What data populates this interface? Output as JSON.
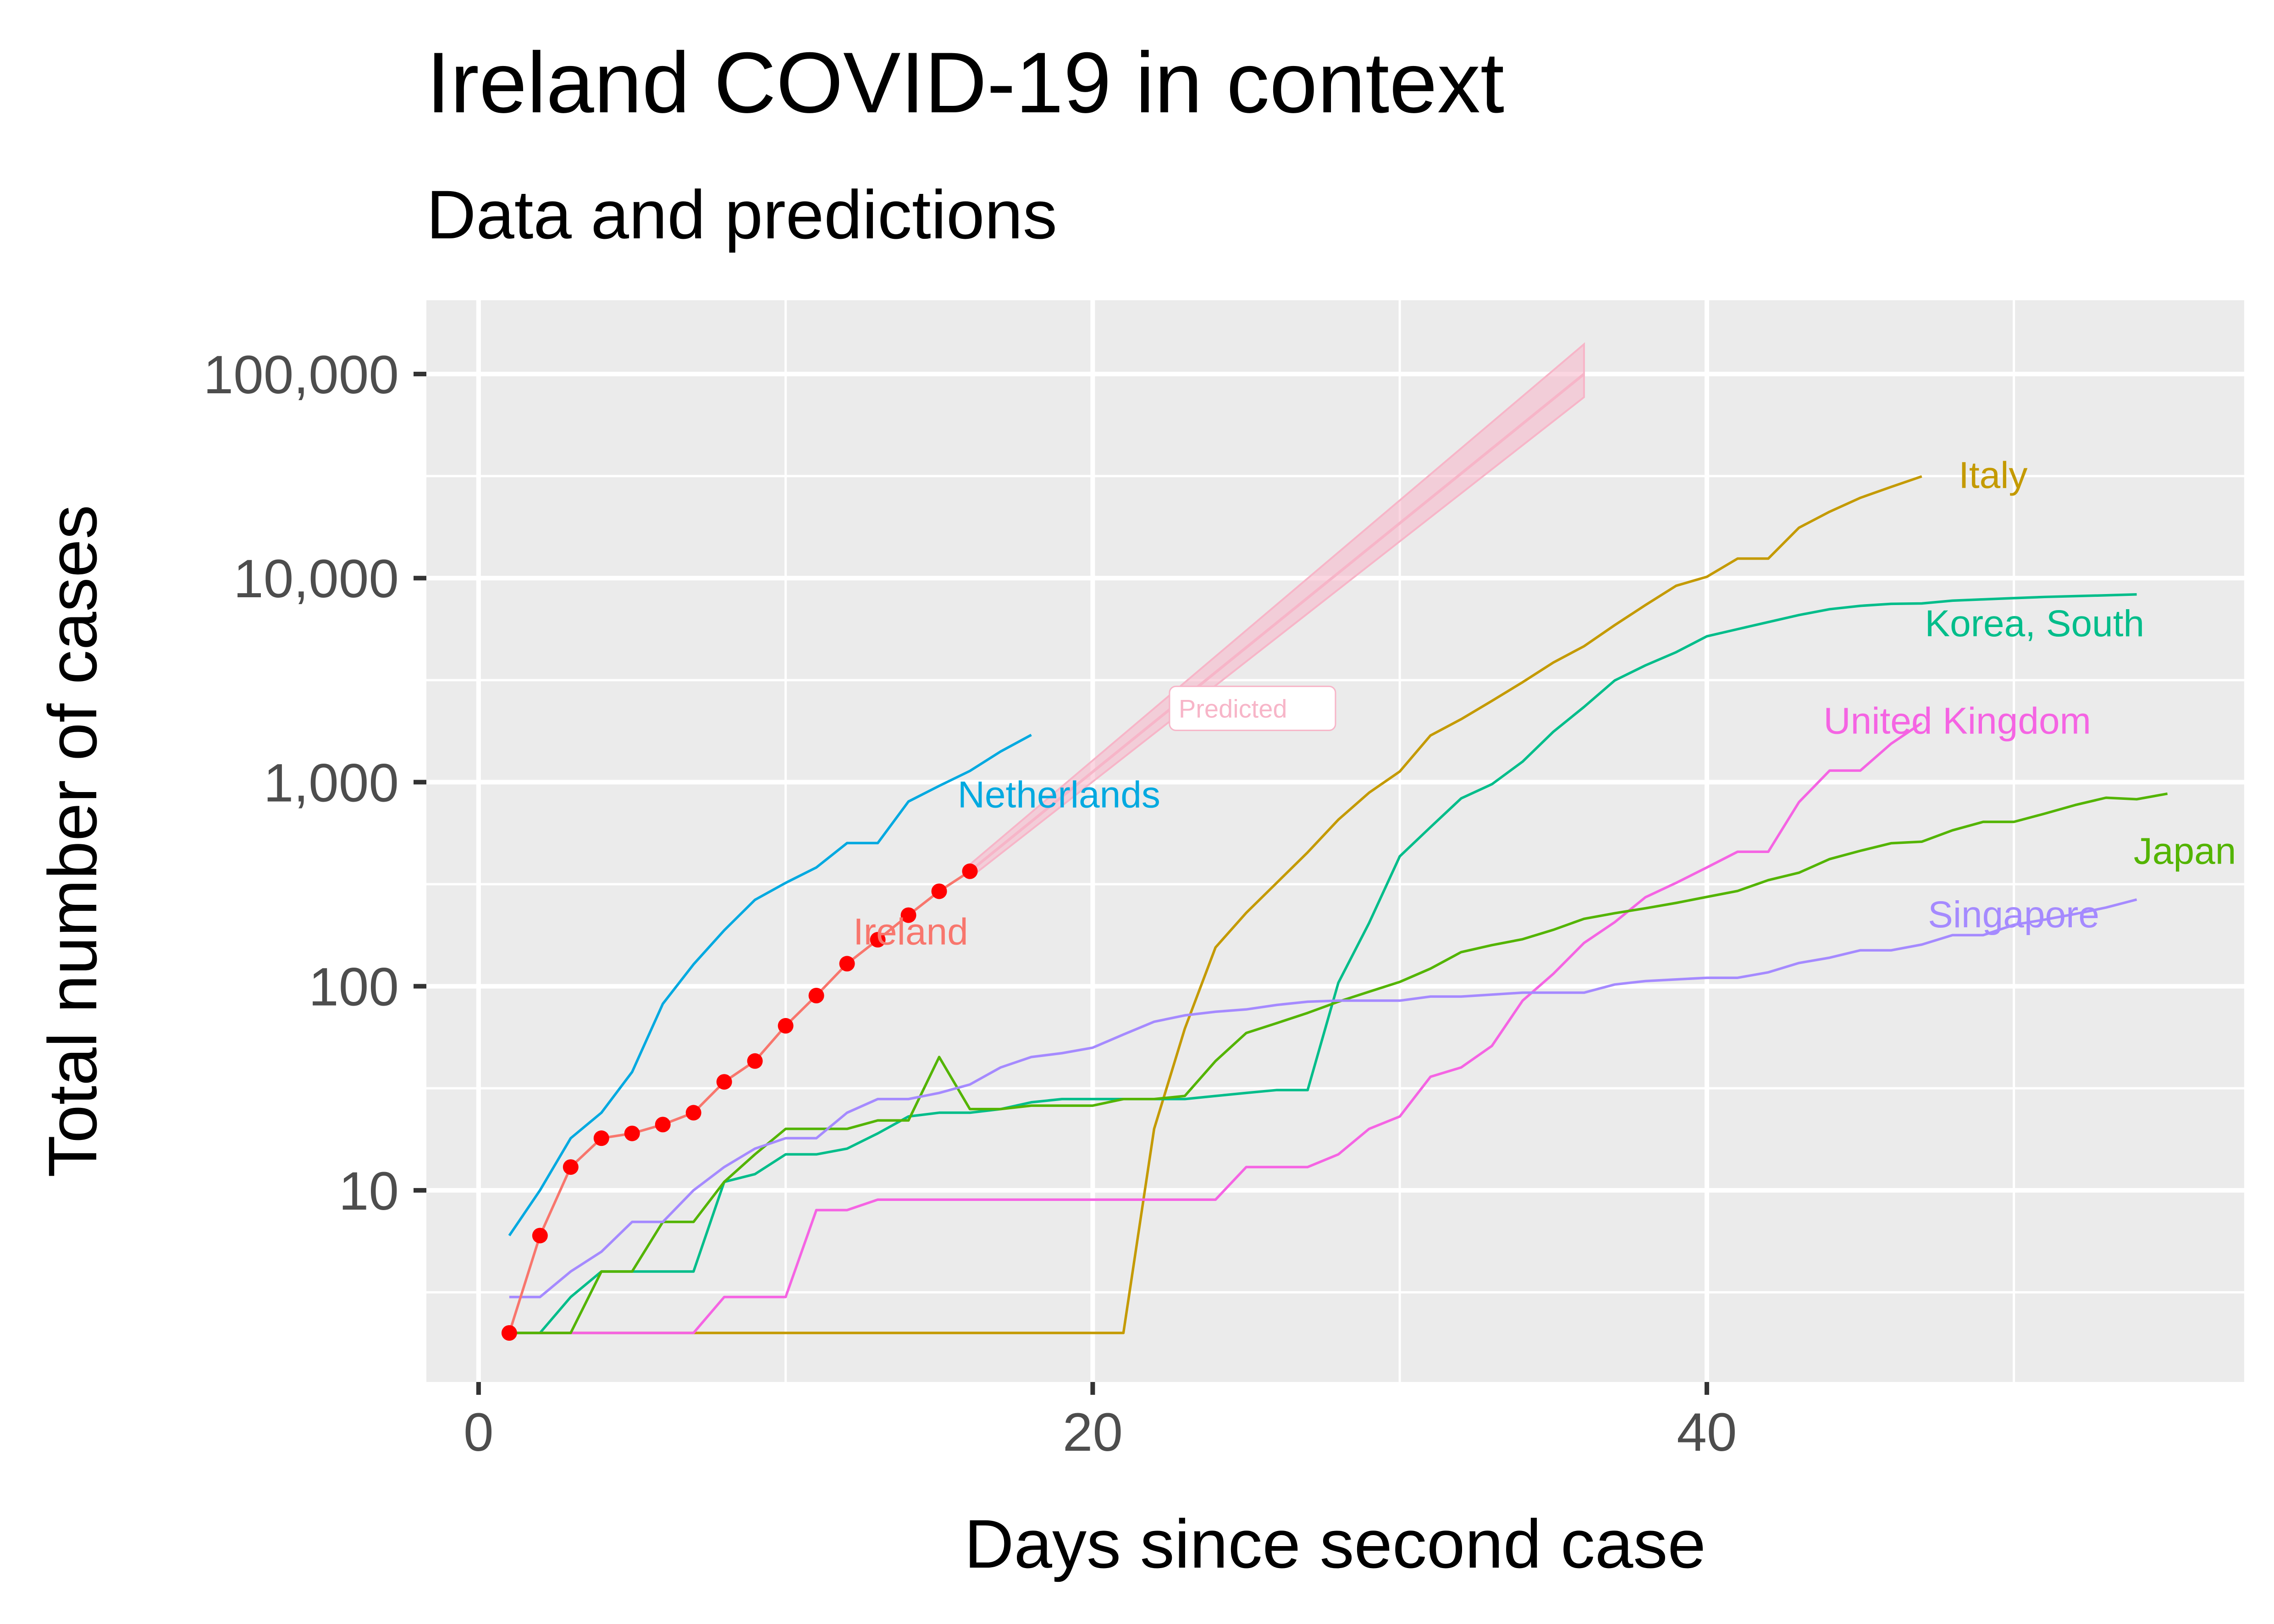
{
  "chart_data": {
    "type": "line",
    "title": "Ireland COVID-19 in context",
    "subtitle": "Data and predictions",
    "xlabel": "Days since second case",
    "ylabel": "Total number of cases",
    "x_scale": "linear",
    "y_scale": "log10",
    "xlim": [
      -1.7,
      57.5
    ],
    "ylim": [
      1.15,
      230000
    ],
    "x_ticks": [
      0,
      20,
      40
    ],
    "x_tick_labels": [
      "0",
      "20",
      "40"
    ],
    "y_ticks": [
      10,
      100,
      1000,
      10000,
      100000
    ],
    "y_tick_labels": [
      "10",
      "100",
      "1,000",
      "10,000",
      "100,000"
    ],
    "grid": true,
    "legend": "none (direct labels)",
    "series": [
      {
        "name": "Netherlands",
        "color": "#00a9e0",
        "label": {
          "text": "Netherlands",
          "x": 15.6,
          "y": 870
        },
        "x": [
          1,
          2,
          3,
          4,
          5,
          6,
          7,
          8,
          9,
          10,
          11,
          12,
          13,
          14,
          15,
          16,
          17,
          18
        ],
        "y": [
          6,
          10,
          18,
          24,
          38,
          82,
          128,
          188,
          265,
          321,
          382,
          503,
          503,
          804,
          959,
          1135,
          1413,
          1705
        ]
      },
      {
        "name": "Italy",
        "color": "#c49a00",
        "label": {
          "text": "Italy",
          "x": 48.2,
          "y": 32000
        },
        "x": [
          1,
          2,
          3,
          4,
          5,
          6,
          7,
          8,
          9,
          10,
          11,
          12,
          13,
          14,
          15,
          16,
          17,
          18,
          19,
          20,
          21,
          22,
          23,
          24,
          25,
          26,
          27,
          28,
          29,
          30,
          31,
          32,
          33,
          34,
          35,
          36,
          37,
          38,
          39,
          40,
          41,
          42,
          43,
          44,
          45,
          46,
          47
        ],
        "y": [
          2,
          2,
          2,
          2,
          2,
          2,
          2,
          2,
          2,
          2,
          2,
          2,
          2,
          2,
          2,
          2,
          2,
          2,
          2,
          2,
          2,
          20,
          62,
          155,
          229,
          322,
          453,
          655,
          888,
          1128,
          1694,
          2036,
          2502,
          3089,
          3858,
          4636,
          5883,
          7375,
          9172,
          10149,
          12462,
          12462,
          17660,
          21157,
          24747,
          27980,
          31506
        ]
      },
      {
        "name": "Korea, South",
        "color": "#00bd8a",
        "label": {
          "text": "Korea, South",
          "x": 47.1,
          "y": 6000
        },
        "x": [
          1,
          2,
          3,
          4,
          5,
          6,
          7,
          8,
          9,
          10,
          11,
          12,
          13,
          14,
          15,
          16,
          17,
          18,
          19,
          20,
          21,
          22,
          23,
          24,
          25,
          26,
          27,
          28,
          29,
          30,
          31,
          32,
          33,
          34,
          35,
          36,
          37,
          38,
          39,
          40,
          41,
          42,
          43,
          44,
          45,
          46,
          47,
          48,
          49,
          50,
          51,
          52,
          53,
          54
        ],
        "y": [
          2,
          2,
          3,
          4,
          4,
          4,
          4,
          11,
          12,
          15,
          15,
          16,
          19,
          23,
          24,
          24,
          25,
          27,
          28,
          28,
          28,
          28,
          28,
          29,
          30,
          31,
          31,
          104,
          204,
          433,
          602,
          833,
          977,
          1261,
          1766,
          2337,
          3150,
          3736,
          4335,
          5186,
          5621,
          6088,
          6593,
          7041,
          7314,
          7478,
          7513,
          7755,
          7869,
          7979,
          8086,
          8162,
          8236,
          8320
        ]
      },
      {
        "name": "United Kingdom",
        "color": "#f564e3",
        "label": {
          "text": "United Kingdom",
          "x": 43.8,
          "y": 2000
        },
        "x": [
          1,
          2,
          3,
          4,
          5,
          6,
          7,
          8,
          9,
          10,
          11,
          12,
          13,
          14,
          15,
          16,
          17,
          18,
          19,
          20,
          21,
          22,
          23,
          24,
          25,
          26,
          27,
          28,
          29,
          30,
          31,
          32,
          33,
          34,
          35,
          36,
          37,
          38,
          39,
          40,
          41,
          42,
          43,
          44,
          45,
          46,
          47
        ],
        "y": [
          2,
          2,
          2,
          2,
          2,
          2,
          2,
          3,
          3,
          3,
          8,
          8,
          9,
          9,
          9,
          9,
          9,
          9,
          9,
          9,
          9,
          9,
          9,
          9,
          13,
          13,
          13,
          15,
          20,
          23,
          36,
          40,
          51,
          85,
          115,
          163,
          206,
          273,
          321,
          382,
          456,
          456,
          798,
          1140,
          1140,
          1543,
          1950
        ]
      },
      {
        "name": "Japan",
        "color": "#53b400",
        "label": {
          "text": "Japan",
          "x": 53.9,
          "y": 460
        },
        "x": [
          1,
          2,
          3,
          4,
          5,
          6,
          7,
          8,
          9,
          10,
          11,
          12,
          13,
          14,
          15,
          16,
          17,
          18,
          19,
          20,
          21,
          22,
          23,
          24,
          25,
          26,
          27,
          28,
          29,
          30,
          31,
          32,
          33,
          34,
          35,
          36,
          37,
          38,
          39,
          40,
          41,
          42,
          43,
          44,
          45,
          46,
          47,
          48,
          49,
          50,
          51,
          52,
          53,
          54,
          55
        ],
        "y": [
          2,
          2,
          2,
          4,
          4,
          7,
          7,
          11,
          15,
          20,
          20,
          20,
          22,
          22,
          45,
          25,
          25,
          26,
          26,
          26,
          28,
          28,
          29,
          43,
          59,
          66,
          74,
          84,
          94,
          105,
          122,
          147,
          159,
          170,
          189,
          214,
          228,
          241,
          256,
          274,
          293,
          331,
          360,
          420,
          461,
          502,
          511,
          581,
          639,
          639,
          701,
          773,
          839,
          825,
          878
        ]
      },
      {
        "name": "Singapore",
        "color": "#a58aff",
        "label": {
          "text": "Singapore",
          "x": 47.2,
          "y": 225
        },
        "x": [
          1,
          2,
          3,
          4,
          5,
          6,
          7,
          8,
          9,
          10,
          11,
          12,
          13,
          14,
          15,
          16,
          17,
          18,
          19,
          20,
          21,
          22,
          23,
          24,
          25,
          26,
          27,
          28,
          29,
          30,
          31,
          32,
          33,
          34,
          35,
          36,
          37,
          38,
          39,
          40,
          41,
          42,
          43,
          44,
          45,
          46,
          47,
          48,
          49,
          50,
          51,
          52,
          53,
          54
        ],
        "y": [
          3,
          3,
          4,
          5,
          7,
          7,
          10,
          13,
          16,
          18,
          18,
          24,
          28,
          28,
          30,
          33,
          40,
          45,
          47,
          50,
          58,
          67,
          72,
          75,
          77,
          81,
          84,
          85,
          85,
          85,
          89,
          89,
          91,
          93,
          93,
          93,
          102,
          106,
          108,
          110,
          110,
          117,
          130,
          138,
          150,
          150,
          160,
          178,
          178,
          200,
          212,
          226,
          243,
          266
        ]
      },
      {
        "name": "Ireland",
        "color": "#f8766d",
        "point_color": "#ff0000",
        "label": {
          "text": "Ireland",
          "x": 12.2,
          "y": 185
        },
        "x": [
          1,
          2,
          3,
          4,
          5,
          6,
          7,
          8,
          9,
          10,
          11,
          12,
          13,
          14,
          15,
          16
        ],
        "y": [
          2,
          6,
          13,
          18,
          19,
          21,
          24,
          34,
          43,
          64,
          90,
          129,
          169,
          223,
          292,
          366
        ]
      }
    ],
    "prediction": {
      "label": "Predicted",
      "color": "#f7b5c8",
      "x": [
        16,
        36
      ],
      "y": [
        366,
        100000
      ],
      "lower": [
        340,
        77000
      ],
      "upper": [
        395,
        140000
      ],
      "label_position": {
        "x": 22.8,
        "y": 2300
      }
    }
  }
}
